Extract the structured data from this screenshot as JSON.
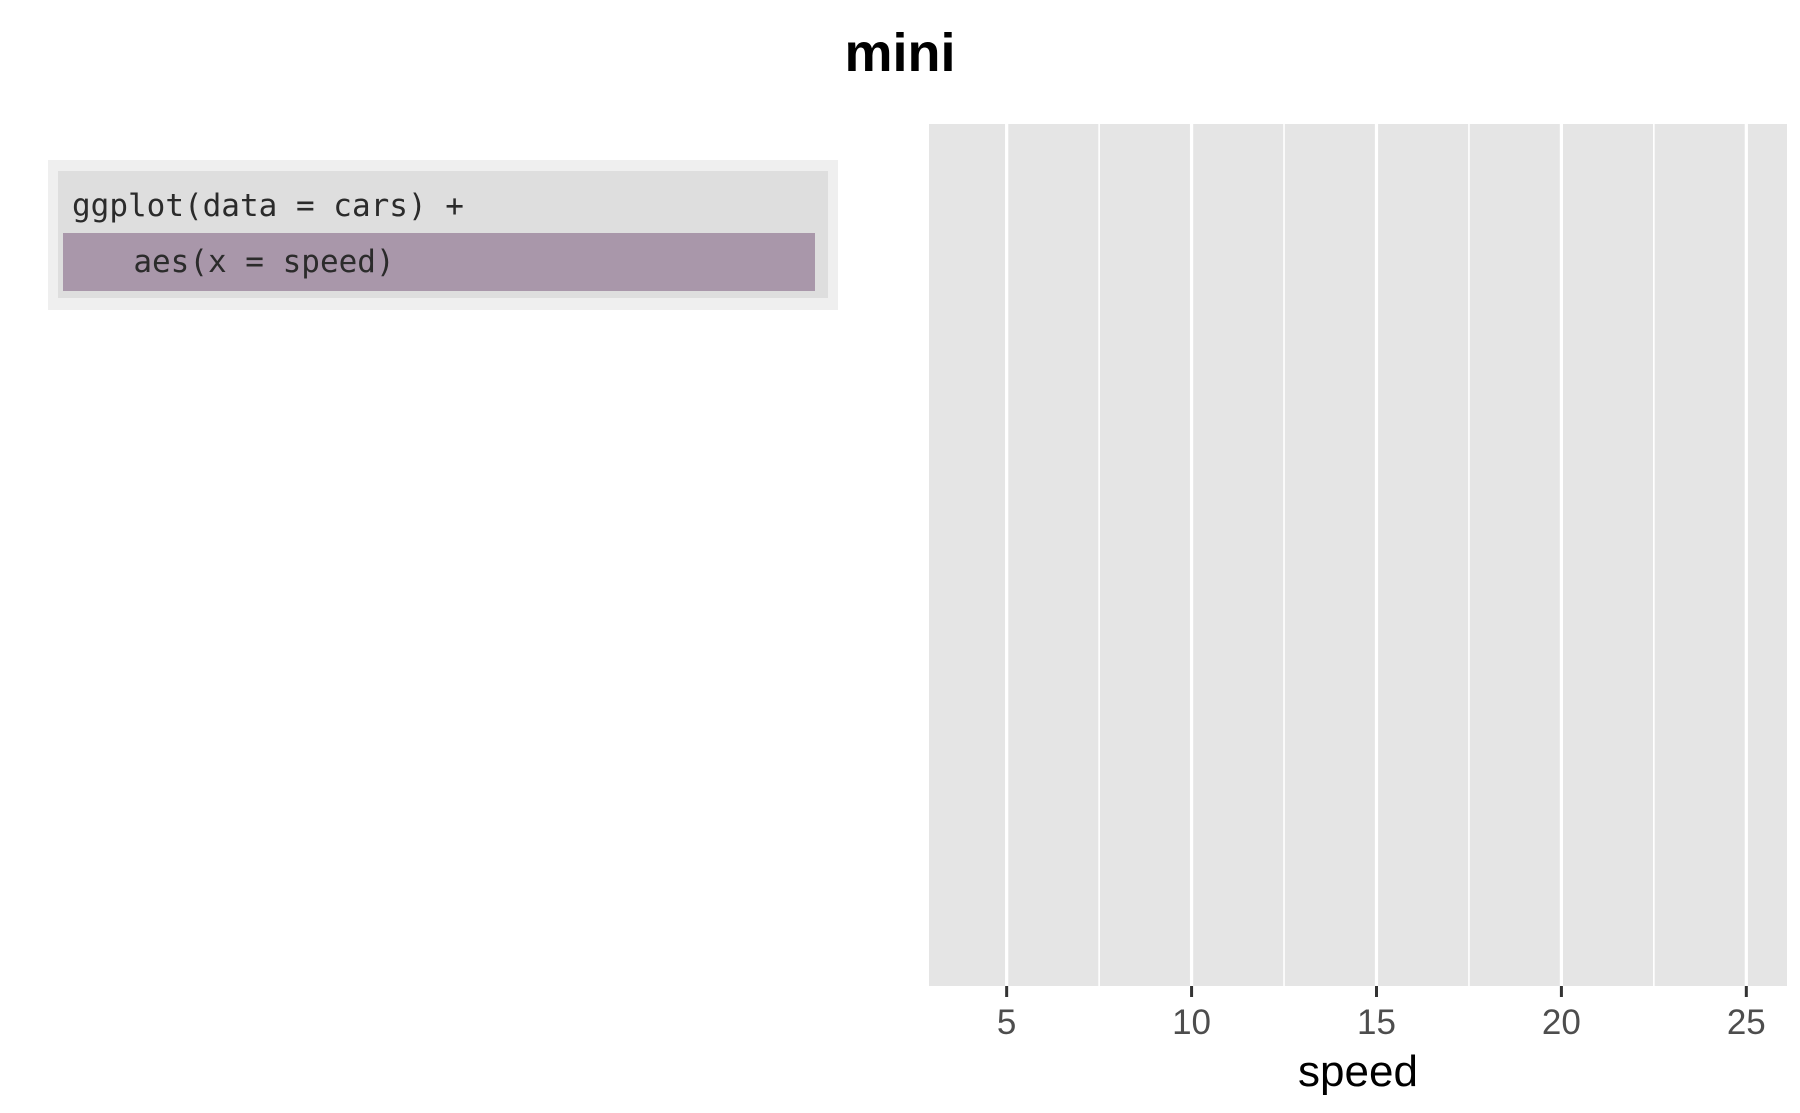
{
  "title": "mini",
  "code": {
    "lines": [
      {
        "text": "ggplot(data = cars) +",
        "highlighted": false
      },
      {
        "text": "  aes(x = speed)",
        "highlighted": true
      }
    ],
    "highlight_color": "#a997aa"
  },
  "chart_data": {
    "type": "scatter",
    "title": "",
    "xlabel": "speed",
    "ylabel": "",
    "xlim": [
      2.9,
      26.1
    ],
    "x_ticks": [
      5,
      10,
      15,
      20,
      25
    ],
    "x_tick_labels": [
      "5",
      "10",
      "15",
      "20",
      "25"
    ],
    "x_minor_ticks": [
      7.5,
      12.5,
      17.5,
      22.5
    ],
    "y_ticks": [],
    "series": [],
    "grid": true,
    "panel_background": "#e5e5e5",
    "grid_color": "#ffffff"
  }
}
